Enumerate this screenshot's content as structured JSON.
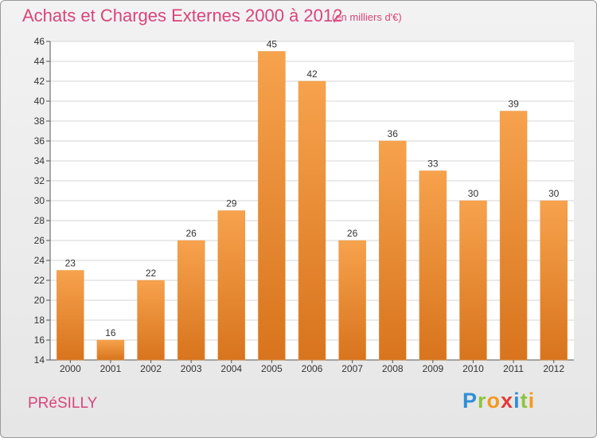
{
  "title": "Achats et Charges Externes 2000 à 2012",
  "subtitle": "(en milliers d'€)",
  "place": "PRéSILLY",
  "logo": {
    "letters": [
      "P",
      "r",
      "o",
      "x",
      "i",
      "t",
      "i"
    ],
    "colors": [
      "#2e8fd6",
      "#8bc53f",
      "#f39a1e",
      "#e53935",
      "#2e8fd6",
      "#8bc53f",
      "#f39a1e"
    ]
  },
  "colors": {
    "title": "#d9457a",
    "bar_top": "#f7a24d",
    "bar_bottom": "#d8741d",
    "grid": "#d6d6d6"
  },
  "chart_data": {
    "type": "bar",
    "categories": [
      "2000",
      "2001",
      "2002",
      "2003",
      "2004",
      "2005",
      "2006",
      "2007",
      "2008",
      "2009",
      "2010",
      "2011",
      "2012"
    ],
    "values": [
      23,
      16,
      22,
      26,
      29,
      45,
      42,
      26,
      36,
      33,
      30,
      39,
      30
    ],
    "ylim": [
      14,
      46
    ],
    "yticks": [
      14,
      16,
      18,
      20,
      22,
      24,
      26,
      28,
      30,
      32,
      34,
      36,
      38,
      40,
      42,
      44,
      46
    ],
    "grid": true,
    "data_labels": true
  }
}
